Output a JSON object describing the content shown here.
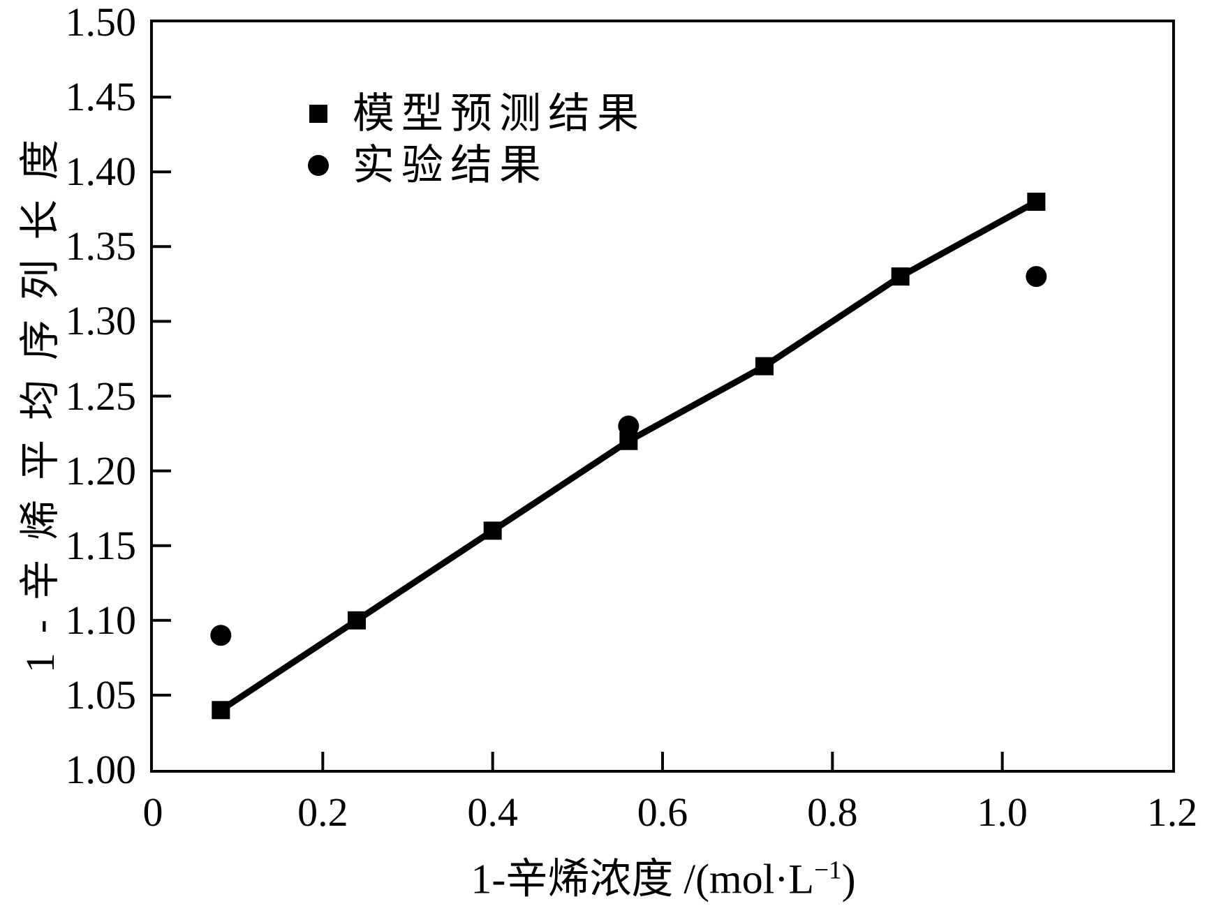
{
  "figure": {
    "background_color": "#ffffff",
    "ink_color": "#000000"
  },
  "chart_data": {
    "type": "line",
    "title": "",
    "xlabel": "1-辛烯浓度 /(mol·L⁻¹)",
    "xlabel_parts": {
      "main": "1-辛烯浓度 /(mol·L",
      "superscript": "−1",
      "close": ")"
    },
    "ylabel": "1-辛烯平均序列长度",
    "xlim": [
      0,
      1.2
    ],
    "ylim": [
      1.0,
      1.5
    ],
    "grid": false,
    "legend_position": "upper-left-inside",
    "x_ticks": {
      "values": [
        0,
        0.2,
        0.4,
        0.6,
        0.8,
        1.0,
        1.2
      ],
      "labels": [
        "0",
        "0.2",
        "0.4",
        "0.6",
        "0.8",
        "1.0",
        "1.2"
      ]
    },
    "y_ticks": {
      "values": [
        1.0,
        1.05,
        1.1,
        1.15,
        1.2,
        1.25,
        1.3,
        1.35,
        1.4,
        1.45,
        1.5
      ],
      "labels": [
        "1.00",
        "1.05",
        "1.10",
        "1.15",
        "1.20",
        "1.25",
        "1.30",
        "1.35",
        "1.40",
        "1.45",
        "1.50"
      ]
    },
    "series": [
      {
        "name": "模型预测结果",
        "marker": "square",
        "line": true,
        "x": [
          0.08,
          0.24,
          0.4,
          0.56,
          0.72,
          0.88,
          1.04
        ],
        "y": [
          1.04,
          1.1,
          1.16,
          1.22,
          1.27,
          1.33,
          1.38
        ]
      },
      {
        "name": "实验结果",
        "marker": "circle",
        "line": false,
        "x": [
          0.08,
          0.56,
          1.04
        ],
        "y": [
          1.09,
          1.23,
          1.33
        ]
      }
    ]
  }
}
